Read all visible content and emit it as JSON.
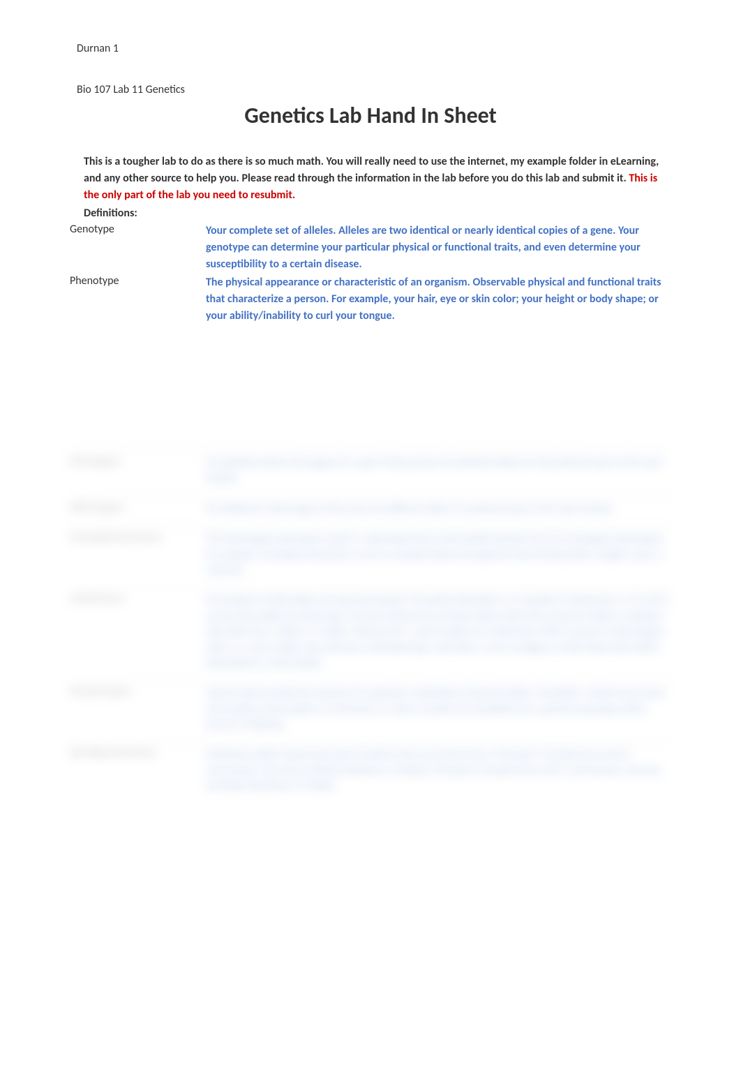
{
  "header": {
    "student_name": "Durnan 1",
    "course": "Bio 107 Lab 11 Genetics",
    "title": "Genetics Lab Hand In Sheet"
  },
  "intro": {
    "text_part1": "This is a tougher lab to do as there is so much math. You will really need to use the internet, my example folder in eLearning, and any other source to help you. Please read through the information in the lab before you do this lab and submit it.",
    "text_red": " This is the only part of the lab you need to resubmit.",
    "definitions_label": "Definitions:"
  },
  "definitions": [
    {
      "term": "Genotype",
      "definition": "Your complete set of alleles. Alleles are two identical or nearly identical copies of a gene. Your genotype can determine your particular physical or functional traits, and even determine your susceptibility to a certain disease."
    },
    {
      "term": "Phenotype",
      "definition": "The physical appearance or characteristic of an organism. Observable physical and functional traits that characterize a person. For example, your hair, eye or skin color; your height or body shape; or your ability/inability to curl your tongue."
    }
  ],
  "blurred_definitions": [
    {
      "term": "Homozygous",
      "definition": "An individual will be homozygous for a gene if they possess two identical alleles for that particular gene at the same location."
    },
    {
      "term": "Heterozygous",
      "definition": "An individual is heterozygous if they have two different alleles of a particular gene at the same location."
    },
    {
      "term": "Incomplete Dominance",
      "definition": "The heterozygous phenotype results in a phenotype that is intermediate between the two homozygous phenotypes. For example, Incomplete Dominance occurs in carnation flowers through the trait of having white, straight, wavy, or curly hair."
    },
    {
      "term": "Codominance",
      "definition": "The products of both alleles are expressed equally. The perfect illustration is an example of codominance. A, B, and O are the three alleles for blood type. A person will have two of these alleles where the recessive O allele is combined with either the i-a allele or i-b allele. However the i-a and i-b alleles are codominant. When a person is heterozygous with an i-a and i-b allele, they will have an AB blood type, with both i-a and i-b antigens on their blood cells neither being absent or intermediate."
    },
    {
      "term": "Punnett Square",
      "definition": "Used to help to predict the outcome of a particular combination of parental alleles. Essentially a simple way to show and visualize certain patterns of inheritance in order to predict the probability that a particular genotype will be present in offspring."
    },
    {
      "term": "Sex-linked inheritance",
      "definition": "Inheritance pattern based upon genes located on the sex chromosomes. If the gene is located only on the X chromosome, then the sex-linked inheritance is X-linked. If the gene is located only on the Y chromosome, then the sex-linked inheritance is Y-linked."
    }
  ],
  "colors": {
    "text_primary": "#333333",
    "text_red": "#cc0000",
    "text_blue": "#4472c4",
    "background": "#ffffff"
  }
}
